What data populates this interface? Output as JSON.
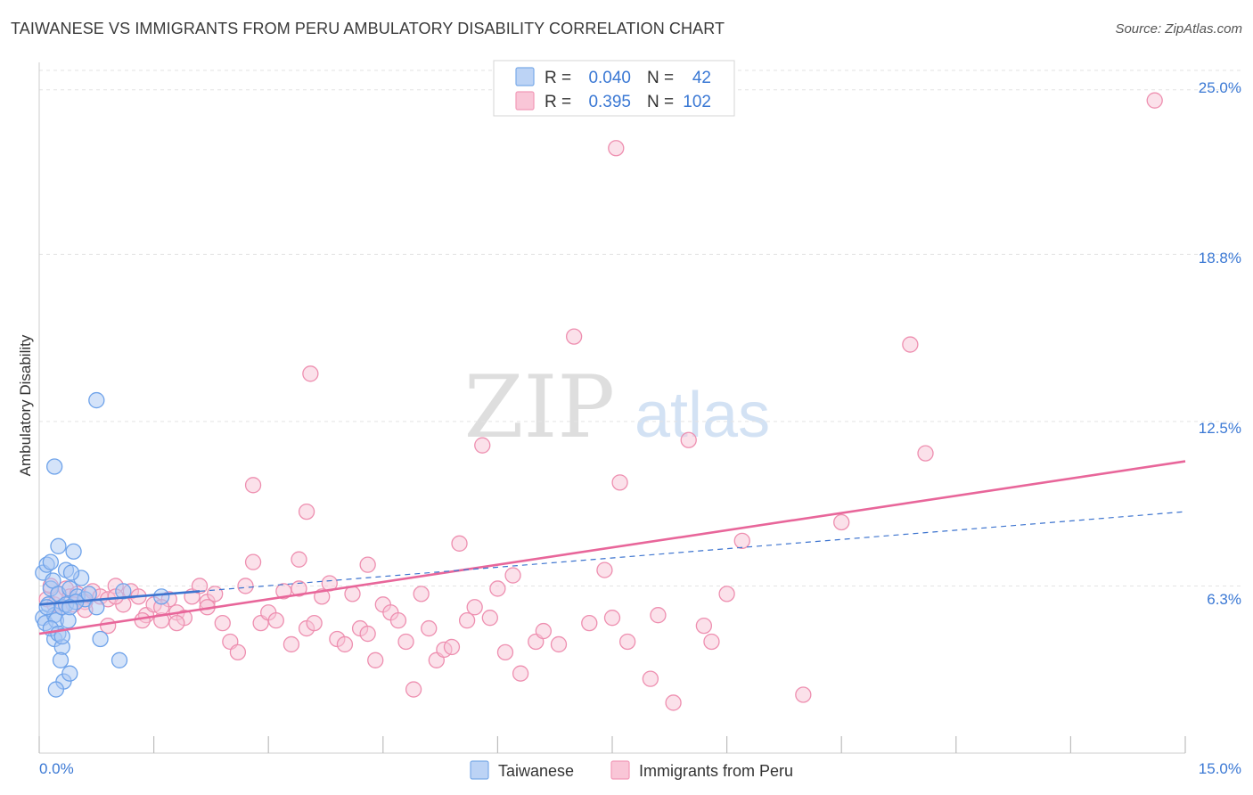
{
  "header": {
    "title": "TAIWANESE VS IMMIGRANTS FROM PERU AMBULATORY DISABILITY CORRELATION CHART",
    "source": "Source: ZipAtlas.com"
  },
  "watermark": {
    "zip": "ZIP",
    "atlas": "atlas"
  },
  "stats_box": {
    "rows": [
      {
        "r_label": "R =",
        "r_value": "0.040",
        "n_label": "N =",
        "n_value": "42",
        "color": "#7aaae8"
      },
      {
        "r_label": "R =",
        "r_value": "0.395",
        "n_label": "N =",
        "n_value": "102",
        "color": "#f29ab8"
      }
    ]
  },
  "chart_data": {
    "type": "scatter",
    "title": "TAIWANESE VS IMMIGRANTS FROM PERU AMBULATORY DISABILITY CORRELATION CHART",
    "xlabel": "",
    "ylabel": "Ambulatory Disability",
    "xlim": [
      0,
      15
    ],
    "ylim": [
      0,
      26
    ],
    "y_ticks": [
      {
        "value": 6.3,
        "label": "6.3%"
      },
      {
        "value": 12.5,
        "label": "12.5%"
      },
      {
        "value": 18.8,
        "label": "18.8%"
      },
      {
        "value": 25.0,
        "label": "25.0%"
      }
    ],
    "x_tick_labels": {
      "min": "0.0%",
      "max": "15.0%"
    },
    "x_minor_ticks": [
      0,
      1.5,
      3,
      4.5,
      6,
      7.5,
      9,
      10.5,
      12,
      13.5,
      15
    ],
    "grid": true,
    "series": [
      {
        "name": "Taiwanese",
        "color": "#6fa3ea",
        "fill": "#a9c8f4",
        "trend": {
          "solid": [
            [
              0.0,
              5.6
            ],
            [
              2.1,
              6.1
            ]
          ],
          "dashed": [
            [
              2.1,
              6.1
            ],
            [
              15.0,
              9.1
            ]
          ],
          "color": "#3d74cf"
        },
        "points": [
          [
            0.05,
            5.1
          ],
          [
            0.05,
            6.8
          ],
          [
            0.1,
            7.1
          ],
          [
            0.12,
            5.6
          ],
          [
            0.08,
            4.9
          ],
          [
            0.15,
            6.2
          ],
          [
            0.2,
            5.2
          ],
          [
            0.1,
            5.5
          ],
          [
            0.15,
            7.2
          ],
          [
            0.18,
            6.5
          ],
          [
            0.22,
            5.0
          ],
          [
            0.25,
            6.0
          ],
          [
            0.2,
            4.3
          ],
          [
            0.3,
            5.5
          ],
          [
            0.25,
            7.8
          ],
          [
            0.35,
            6.9
          ],
          [
            0.3,
            4.0
          ],
          [
            0.28,
            3.5
          ],
          [
            0.35,
            5.6
          ],
          [
            0.4,
            6.2
          ],
          [
            0.32,
            2.7
          ],
          [
            0.45,
            7.6
          ],
          [
            0.5,
            5.9
          ],
          [
            0.55,
            6.6
          ],
          [
            0.6,
            5.8
          ],
          [
            0.42,
            6.8
          ],
          [
            0.48,
            5.7
          ],
          [
            0.38,
            5.0
          ],
          [
            0.4,
            5.5
          ],
          [
            0.2,
            10.8
          ],
          [
            0.75,
            5.5
          ],
          [
            0.65,
            6.0
          ],
          [
            0.8,
            4.3
          ],
          [
            0.75,
            13.3
          ],
          [
            0.4,
            3.0
          ],
          [
            1.05,
            3.5
          ],
          [
            0.22,
            2.4
          ],
          [
            0.15,
            4.7
          ],
          [
            0.25,
            4.5
          ],
          [
            0.3,
            4.4
          ],
          [
            1.1,
            6.1
          ],
          [
            1.6,
            5.9
          ]
        ]
      },
      {
        "name": "Immigrants from Peru",
        "color": "#ee8fb0",
        "fill": "#f8c3d5",
        "trend": {
          "solid": [
            [
              0.0,
              4.5
            ],
            [
              15.0,
              11.0
            ]
          ],
          "color": "#e8669a"
        },
        "points": [
          [
            0.1,
            5.8
          ],
          [
            0.15,
            6.3
          ],
          [
            0.2,
            5.6
          ],
          [
            0.25,
            6.0
          ],
          [
            0.3,
            5.5
          ],
          [
            0.35,
            6.2
          ],
          [
            0.4,
            5.9
          ],
          [
            0.5,
            6.0
          ],
          [
            0.6,
            5.7
          ],
          [
            0.7,
            6.1
          ],
          [
            0.8,
            5.9
          ],
          [
            0.9,
            5.8
          ],
          [
            1.0,
            6.3
          ],
          [
            1.1,
            5.6
          ],
          [
            1.2,
            6.1
          ],
          [
            1.3,
            5.9
          ],
          [
            1.4,
            5.2
          ],
          [
            1.5,
            5.6
          ],
          [
            1.6,
            5.0
          ],
          [
            1.7,
            5.8
          ],
          [
            1.8,
            5.3
          ],
          [
            1.9,
            5.1
          ],
          [
            2.0,
            5.9
          ],
          [
            2.1,
            6.3
          ],
          [
            2.2,
            5.7
          ],
          [
            2.3,
            6.0
          ],
          [
            2.4,
            4.9
          ],
          [
            2.5,
            4.2
          ],
          [
            2.6,
            3.8
          ],
          [
            2.7,
            6.3
          ],
          [
            2.8,
            7.2
          ],
          [
            2.9,
            4.9
          ],
          [
            3.0,
            5.3
          ],
          [
            3.1,
            5.0
          ],
          [
            3.2,
            6.1
          ],
          [
            3.3,
            4.1
          ],
          [
            3.4,
            6.2
          ],
          [
            3.5,
            4.7
          ],
          [
            3.6,
            4.9
          ],
          [
            3.7,
            5.9
          ],
          [
            3.8,
            6.4
          ],
          [
            3.9,
            4.3
          ],
          [
            4.0,
            4.1
          ],
          [
            4.1,
            6.0
          ],
          [
            4.2,
            4.7
          ],
          [
            4.3,
            4.5
          ],
          [
            4.4,
            3.5
          ],
          [
            4.5,
            5.6
          ],
          [
            4.6,
            5.3
          ],
          [
            4.7,
            5.0
          ],
          [
            4.8,
            4.2
          ],
          [
            4.9,
            2.4
          ],
          [
            5.0,
            6.0
          ],
          [
            5.1,
            4.7
          ],
          [
            5.2,
            3.5
          ],
          [
            5.3,
            3.9
          ],
          [
            5.4,
            4.0
          ],
          [
            5.5,
            7.9
          ],
          [
            5.6,
            5.0
          ],
          [
            5.7,
            5.5
          ],
          [
            5.8,
            11.6
          ],
          [
            5.9,
            5.1
          ],
          [
            6.0,
            6.2
          ],
          [
            6.1,
            3.8
          ],
          [
            6.2,
            6.7
          ],
          [
            6.3,
            3.0
          ],
          [
            6.5,
            4.2
          ],
          [
            6.6,
            4.6
          ],
          [
            6.8,
            4.1
          ],
          [
            7.0,
            15.7
          ],
          [
            7.2,
            4.9
          ],
          [
            7.4,
            6.9
          ],
          [
            7.5,
            5.1
          ],
          [
            7.55,
            22.8
          ],
          [
            7.6,
            10.2
          ],
          [
            7.7,
            4.2
          ],
          [
            8.0,
            2.8
          ],
          [
            8.1,
            5.2
          ],
          [
            8.3,
            1.9
          ],
          [
            8.5,
            11.8
          ],
          [
            8.7,
            4.8
          ],
          [
            8.8,
            4.2
          ],
          [
            9.0,
            6.0
          ],
          [
            9.2,
            8.0
          ],
          [
            10.0,
            2.2
          ],
          [
            10.5,
            8.7
          ],
          [
            11.4,
            15.4
          ],
          [
            11.6,
            11.3
          ],
          [
            14.6,
            24.6
          ],
          [
            3.55,
            14.3
          ],
          [
            2.8,
            10.1
          ],
          [
            3.5,
            9.1
          ],
          [
            3.4,
            7.3
          ],
          [
            4.3,
            7.1
          ],
          [
            1.6,
            5.5
          ],
          [
            1.8,
            4.9
          ],
          [
            2.2,
            5.5
          ],
          [
            1.0,
            5.9
          ],
          [
            0.6,
            5.4
          ],
          [
            1.35,
            5.0
          ],
          [
            0.45,
            5.6
          ],
          [
            0.9,
            4.8
          ]
        ]
      }
    ],
    "legend": {
      "placement": "bottom-center",
      "items": [
        "Taiwanese",
        "Immigrants from Peru"
      ]
    }
  }
}
